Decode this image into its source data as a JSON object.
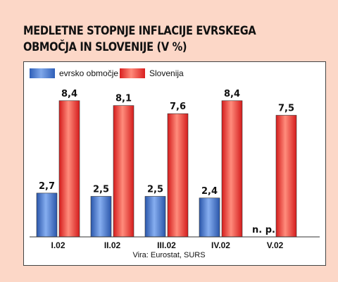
{
  "chart_data": {
    "type": "bar",
    "title": "MEDLETNE STOPNJE INFLACIJE EVRSKEGA OBMOČJA IN SLOVENIJE (V %)",
    "categories": [
      "I.02",
      "II.02",
      "III.02",
      "IV.02",
      "V.02"
    ],
    "series": [
      {
        "name": "evrsko območje",
        "values": [
          2.7,
          2.5,
          2.5,
          2.4,
          null
        ],
        "labels": [
          "2,7",
          "2,5",
          "2,5",
          "2,4",
          "n. p."
        ],
        "color": "#3a6fc8"
      },
      {
        "name": "Slovenija",
        "values": [
          8.4,
          8.1,
          7.6,
          8.4,
          7.5
        ],
        "labels": [
          "8,4",
          "8,1",
          "7,6",
          "8,4",
          "7,5"
        ],
        "color": "#e62b2b"
      }
    ],
    "ylim": [
      0,
      10
    ],
    "grid": false,
    "legend_position": "top-left",
    "source": "Vira: Eurostat, SURS"
  }
}
